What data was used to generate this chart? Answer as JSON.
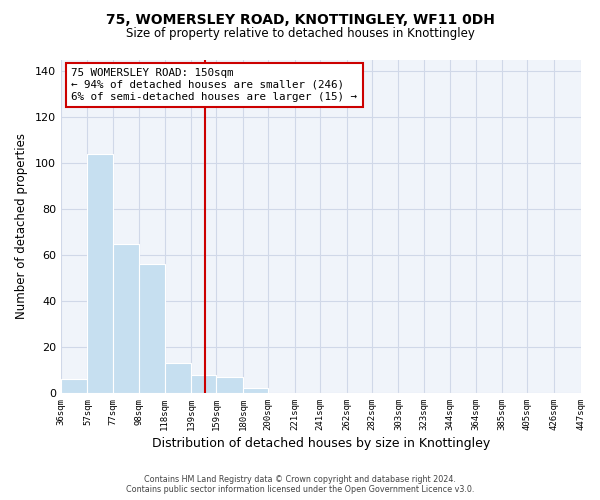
{
  "title": "75, WOMERSLEY ROAD, KNOTTINGLEY, WF11 0DH",
  "subtitle": "Size of property relative to detached houses in Knottingley",
  "xlabel": "Distribution of detached houses by size in Knottingley",
  "ylabel": "Number of detached properties",
  "footer_line1": "Contains HM Land Registry data © Crown copyright and database right 2024.",
  "footer_line2": "Contains public sector information licensed under the Open Government Licence v3.0.",
  "bar_edges": [
    36,
    57,
    77,
    98,
    118,
    139,
    159,
    180,
    200,
    221,
    241,
    262,
    282,
    303,
    323,
    344,
    364,
    385,
    405,
    426,
    447
  ],
  "bar_heights": [
    6,
    104,
    65,
    56,
    13,
    8,
    7,
    2,
    0,
    0,
    0,
    0,
    0,
    0,
    0,
    0,
    0,
    0,
    0,
    0,
    1
  ],
  "bar_color": "#c6dff0",
  "bar_edgecolor": "#ffffff",
  "vline_x": 150,
  "vline_color": "#cc0000",
  "annotation_title": "75 WOMERSLEY ROAD: 150sqm",
  "annotation_line1": "← 94% of detached houses are smaller (246)",
  "annotation_line2": "6% of semi-detached houses are larger (15) →",
  "ylim": [
    0,
    145
  ],
  "yticks": [
    0,
    20,
    40,
    60,
    80,
    100,
    120,
    140
  ],
  "tick_labels": [
    "36sqm",
    "57sqm",
    "77sqm",
    "98sqm",
    "118sqm",
    "139sqm",
    "159sqm",
    "180sqm",
    "200sqm",
    "221sqm",
    "241sqm",
    "262sqm",
    "282sqm",
    "303sqm",
    "323sqm",
    "344sqm",
    "364sqm",
    "385sqm",
    "405sqm",
    "426sqm",
    "447sqm"
  ],
  "grid_color": "#d0d8e8",
  "bg_color": "#f0f4fa"
}
